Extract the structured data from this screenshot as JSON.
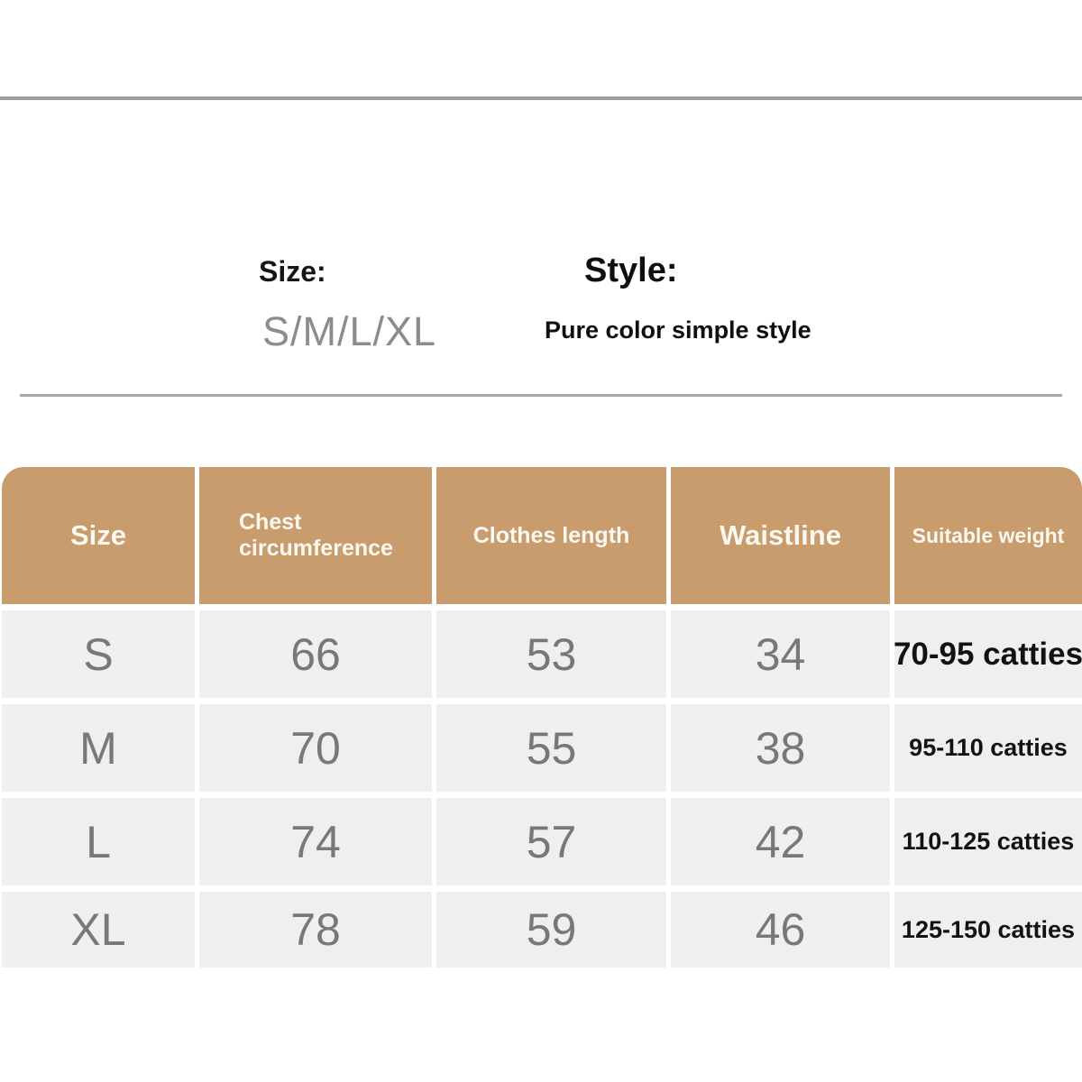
{
  "page": {
    "background": "#ffffff"
  },
  "top_photo_strip": {
    "gray_color": "#9aa0a4",
    "dark_color_start": "#11161d",
    "dark_color_end": "#44607e"
  },
  "product_info": {
    "size_label": "Size:",
    "size_value": "S/M/L/XL",
    "style_label": "Style:",
    "style_value": "Pure color simple style"
  },
  "colors": {
    "table_header_bg": "#c89c6d",
    "table_header_text": "#fbf7f1",
    "table_row_bg": "#f0efee",
    "table_value_text": "#787878",
    "weight_text": "#121212",
    "divider": "#a8a8a8"
  },
  "chart_data": {
    "type": "table",
    "columns": [
      "Size",
      "Chest circumference",
      "Clothes length",
      "Waistline",
      "Suitable weight"
    ],
    "rows": [
      [
        "S",
        "66",
        "53",
        "34",
        "70-95 catties"
      ],
      [
        "M",
        "70",
        "55",
        "38",
        "95-110 catties"
      ],
      [
        "L",
        "74",
        "57",
        "42",
        "110-125 catties"
      ],
      [
        "XL",
        "78",
        "59",
        "46",
        "125-150 catties"
      ]
    ]
  }
}
